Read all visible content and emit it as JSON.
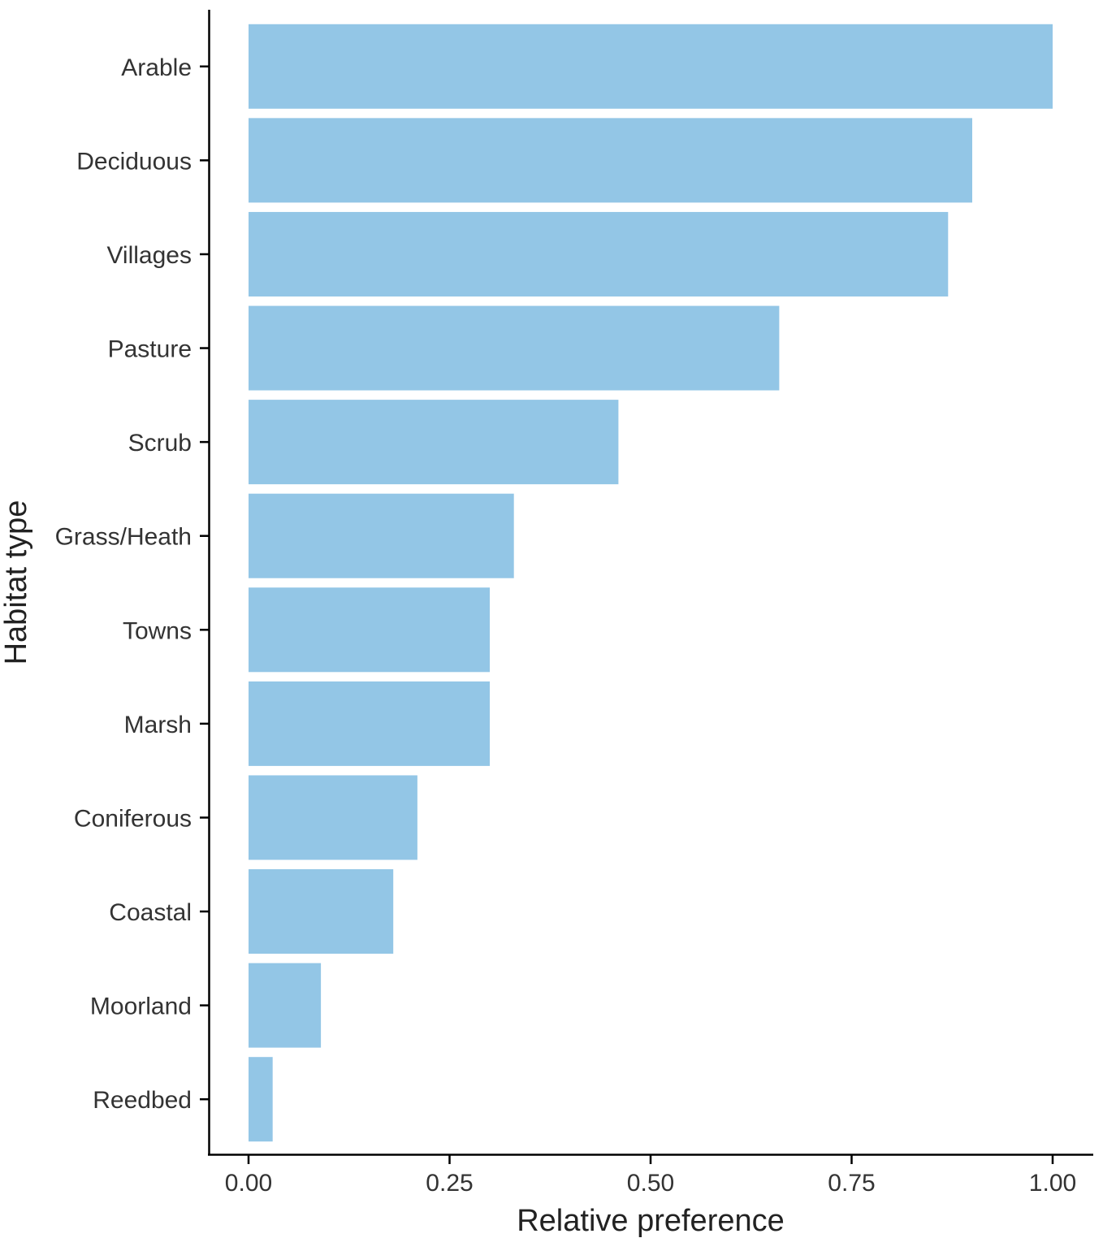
{
  "chart_data": {
    "type": "bar",
    "orientation": "horizontal",
    "categories": [
      "Arable",
      "Deciduous",
      "Villages",
      "Pasture",
      "Scrub",
      "Grass/Heath",
      "Towns",
      "Marsh",
      "Coniferous",
      "Coastal",
      "Moorland",
      "Reedbed"
    ],
    "values": [
      1.0,
      0.9,
      0.87,
      0.66,
      0.46,
      0.33,
      0.3,
      0.3,
      0.21,
      0.18,
      0.09,
      0.03
    ],
    "title": "",
    "xlabel": "Relative preference",
    "ylabel": "Habitat type",
    "xlim": [
      -0.05,
      1.05
    ],
    "xticks": [
      0,
      0.25,
      0.5,
      0.75,
      1
    ],
    "xtick_labels": [
      "0.00",
      "0.25",
      "0.50",
      "0.75",
      "1.00"
    ],
    "bar_color": "#93c6e6",
    "axis_color": "#000000",
    "grid": false,
    "legend": "none"
  }
}
